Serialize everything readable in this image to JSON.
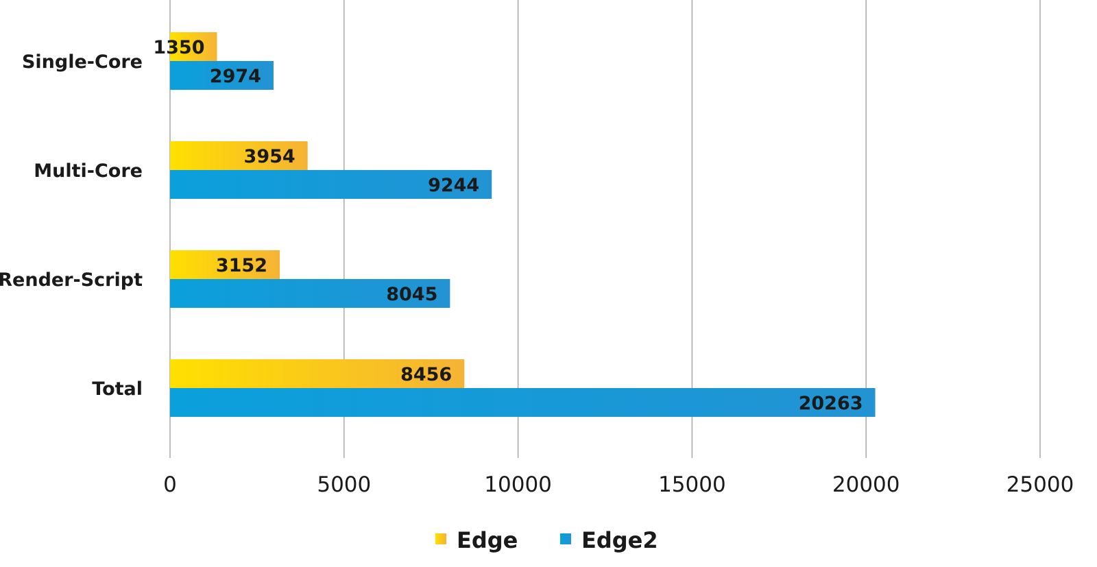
{
  "chart_data": {
    "type": "bar",
    "orientation": "horizontal",
    "categories": [
      "Single-Core",
      "Multi-Core",
      "Render-Script",
      "Total"
    ],
    "series": [
      {
        "name": "Edge",
        "values": [
          1350,
          3954,
          3152,
          8456
        ],
        "color_start": "#FFE000",
        "color_end": "#F5B335"
      },
      {
        "name": "Edge2",
        "values": [
          2974,
          9244,
          8045,
          20263
        ],
        "color_start": "#0AA0DC",
        "color_end": "#2393D3"
      }
    ],
    "x_ticks": [
      "0",
      "5000",
      "10000",
      "15000",
      "20000",
      "25000"
    ],
    "xlim": [
      0,
      25000
    ],
    "grid": true,
    "legend_position": "bottom-center",
    "title": "",
    "xlabel": "",
    "ylabel": ""
  }
}
